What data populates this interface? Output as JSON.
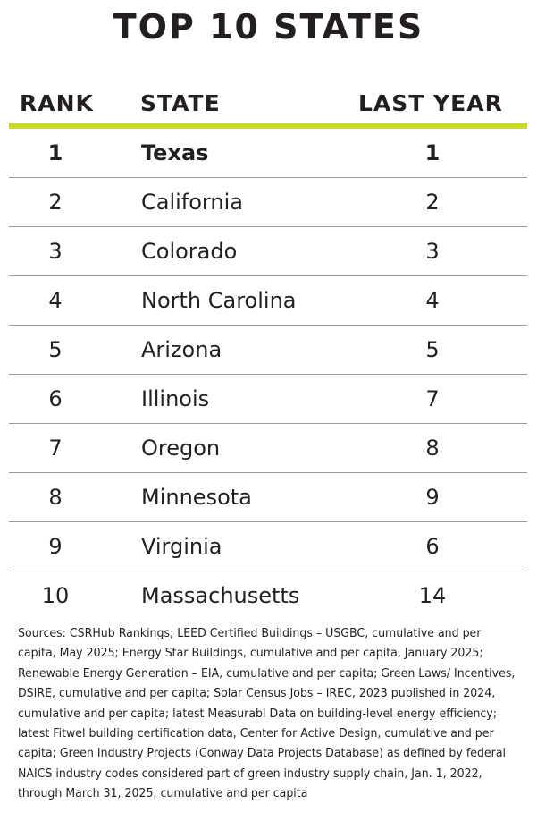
{
  "title": "TOP 10 STATES",
  "columns": {
    "rank": "RANK",
    "state": "STATE",
    "last_year": "LAST YEAR"
  },
  "rows": [
    {
      "rank": "1",
      "state": "Texas",
      "last_year": "1"
    },
    {
      "rank": "2",
      "state": "California",
      "last_year": "2"
    },
    {
      "rank": "3",
      "state": "Colorado",
      "last_year": "3"
    },
    {
      "rank": "4",
      "state": "North Carolina",
      "last_year": "4"
    },
    {
      "rank": "5",
      "state": "Arizona",
      "last_year": "5"
    },
    {
      "rank": "6",
      "state": "Illinois",
      "last_year": "7"
    },
    {
      "rank": "7",
      "state": "Oregon",
      "last_year": "8"
    },
    {
      "rank": "8",
      "state": "Minnesota",
      "last_year": "9"
    },
    {
      "rank": "9",
      "state": "Virginia",
      "last_year": "6"
    },
    {
      "rank": "10",
      "state": "Massachusetts",
      "last_year": "14"
    }
  ],
  "sources": "Sources: CSRHub Rankings; LEED Certified Buildings – USGBC, cumulative and per capita, May 2025; Energy Star Buildings, cumulative and per capita, January 2025; Renewable Energy Generation – EIA, cumulative and per capita; Green Laws/ Incentives, DSIRE, cumulative and per capita; Solar Census Jobs – IREC, 2023 published in 2024, cumulative and per capita; latest Measurabl Data on building-level energy efficiency; latest Fitwel building certification data, Center for Active Design, cumulative and per capita; Green Industry Projects (Conway Data Projects Database) as defined by federal NAICS industry codes considered part of green industry supply chain, Jan. 1, 2022, through March 31, 2025, cumulative and per capita",
  "colors": {
    "accent": "#c8d92a",
    "text": "#231f20",
    "divider": "#9a9a9a"
  }
}
